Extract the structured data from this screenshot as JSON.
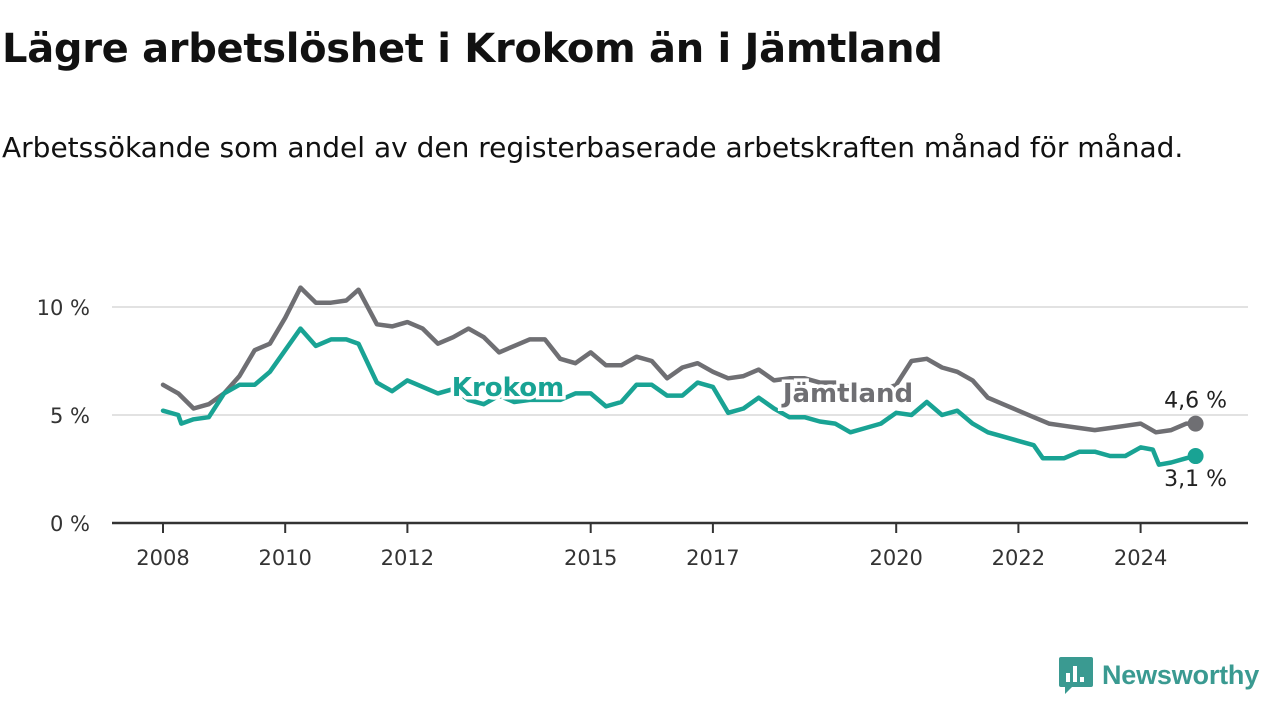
{
  "title": "Lägre arbetslöshet i Krokom än i Jämtland",
  "subtitle": "Arbetssökande som andel av den registerbaserade arbetskraften månad för månad.",
  "brand": {
    "name": "Newsworthy",
    "icon": "bar-chart-speech-icon",
    "color": "#3a9a91"
  },
  "chart_data": {
    "type": "line",
    "x_type": "year",
    "xlim": [
      2008,
      2025.75
    ],
    "ylim": [
      0,
      10.5
    ],
    "y_ticks": [
      0,
      5,
      10
    ],
    "y_tick_labels": [
      "0 %",
      "5 %",
      "10 %"
    ],
    "x_ticks": [
      2008,
      2010,
      2012,
      2015,
      2017,
      2020,
      2022,
      2024
    ],
    "x_tick_labels": [
      "2008",
      "2010",
      "2012",
      "2015",
      "2017",
      "2020",
      "2022",
      "2024"
    ],
    "grid": true,
    "legend": "inline",
    "series": [
      {
        "name": "Jämtland",
        "color": "#6f6f73",
        "end_label": "4,6 %",
        "points": [
          [
            2008,
            6.4
          ],
          [
            2008.25,
            6.0
          ],
          [
            2008.5,
            5.3
          ],
          [
            2008.75,
            5.5
          ],
          [
            2009,
            6.0
          ],
          [
            2009.25,
            6.8
          ],
          [
            2009.5,
            8.0
          ],
          [
            2009.75,
            8.3
          ],
          [
            2010,
            9.5
          ],
          [
            2010.25,
            10.9
          ],
          [
            2010.5,
            10.2
          ],
          [
            2010.75,
            10.2
          ],
          [
            2011,
            10.3
          ],
          [
            2011.2,
            10.8
          ],
          [
            2011.5,
            9.2
          ],
          [
            2011.75,
            9.1
          ],
          [
            2012,
            9.3
          ],
          [
            2012.25,
            9.0
          ],
          [
            2012.5,
            8.3
          ],
          [
            2012.75,
            8.6
          ],
          [
            2013,
            9.0
          ],
          [
            2013.25,
            8.6
          ],
          [
            2013.5,
            7.9
          ],
          [
            2013.75,
            8.2
          ],
          [
            2014,
            8.5
          ],
          [
            2014.25,
            8.5
          ],
          [
            2014.5,
            7.6
          ],
          [
            2014.75,
            7.4
          ],
          [
            2015,
            7.9
          ],
          [
            2015.25,
            7.3
          ],
          [
            2015.5,
            7.3
          ],
          [
            2015.75,
            7.7
          ],
          [
            2016,
            7.5
          ],
          [
            2016.25,
            6.7
          ],
          [
            2016.5,
            7.2
          ],
          [
            2016.75,
            7.4
          ],
          [
            2017,
            7.0
          ],
          [
            2017.25,
            6.7
          ],
          [
            2017.5,
            6.8
          ],
          [
            2017.75,
            7.1
          ],
          [
            2018,
            6.6
          ],
          [
            2018.25,
            6.7
          ],
          [
            2018.5,
            6.7
          ],
          [
            2018.75,
            6.5
          ],
          [
            2019,
            6.5
          ],
          [
            2019.25,
            6.3
          ],
          [
            2019.5,
            6.2
          ],
          [
            2019.75,
            6.1
          ],
          [
            2020,
            6.4
          ],
          [
            2020.25,
            7.5
          ],
          [
            2020.5,
            7.6
          ],
          [
            2020.75,
            7.2
          ],
          [
            2021,
            7.0
          ],
          [
            2021.25,
            6.6
          ],
          [
            2021.5,
            5.8
          ],
          [
            2021.75,
            5.5
          ],
          [
            2022,
            5.2
          ],
          [
            2022.25,
            4.9
          ],
          [
            2022.5,
            4.6
          ],
          [
            2022.75,
            4.5
          ],
          [
            2023,
            4.4
          ],
          [
            2023.25,
            4.3
          ],
          [
            2023.5,
            4.4
          ],
          [
            2023.75,
            4.5
          ],
          [
            2024,
            4.6
          ],
          [
            2024.25,
            4.2
          ],
          [
            2024.5,
            4.3
          ],
          [
            2024.75,
            4.6
          ],
          [
            2024.9,
            4.6
          ]
        ]
      },
      {
        "name": "Krokom",
        "color": "#19a394",
        "end_label": "3,1 %",
        "points": [
          [
            2008,
            5.2
          ],
          [
            2008.25,
            5.0
          ],
          [
            2008.3,
            4.6
          ],
          [
            2008.5,
            4.8
          ],
          [
            2008.75,
            4.9
          ],
          [
            2009,
            6.0
          ],
          [
            2009.25,
            6.4
          ],
          [
            2009.5,
            6.4
          ],
          [
            2009.75,
            7.0
          ],
          [
            2010,
            8.0
          ],
          [
            2010.25,
            9.0
          ],
          [
            2010.5,
            8.2
          ],
          [
            2010.75,
            8.5
          ],
          [
            2011,
            8.5
          ],
          [
            2011.2,
            8.3
          ],
          [
            2011.5,
            6.5
          ],
          [
            2011.75,
            6.1
          ],
          [
            2012,
            6.6
          ],
          [
            2012.25,
            6.3
          ],
          [
            2012.5,
            6.0
          ],
          [
            2012.75,
            6.2
          ],
          [
            2013,
            5.7
          ],
          [
            2013.25,
            5.5
          ],
          [
            2013.5,
            5.9
          ],
          [
            2013.75,
            5.6
          ],
          [
            2014,
            5.7
          ],
          [
            2014.25,
            5.7
          ],
          [
            2014.5,
            5.7
          ],
          [
            2014.75,
            6.0
          ],
          [
            2015,
            6.0
          ],
          [
            2015.25,
            5.4
          ],
          [
            2015.5,
            5.6
          ],
          [
            2015.75,
            6.4
          ],
          [
            2016,
            6.4
          ],
          [
            2016.25,
            5.9
          ],
          [
            2016.5,
            5.9
          ],
          [
            2016.75,
            6.5
          ],
          [
            2017,
            6.3
          ],
          [
            2017.25,
            5.1
          ],
          [
            2017.5,
            5.3
          ],
          [
            2017.75,
            5.8
          ],
          [
            2018,
            5.3
          ],
          [
            2018.25,
            4.9
          ],
          [
            2018.5,
            4.9
          ],
          [
            2018.75,
            4.7
          ],
          [
            2019,
            4.6
          ],
          [
            2019.25,
            4.2
          ],
          [
            2019.5,
            4.4
          ],
          [
            2019.75,
            4.6
          ],
          [
            2020,
            5.1
          ],
          [
            2020.25,
            5.0
          ],
          [
            2020.5,
            5.6
          ],
          [
            2020.75,
            5.0
          ],
          [
            2021,
            5.2
          ],
          [
            2021.25,
            4.6
          ],
          [
            2021.5,
            4.2
          ],
          [
            2021.75,
            4.0
          ],
          [
            2022,
            3.8
          ],
          [
            2022.25,
            3.6
          ],
          [
            2022.4,
            3.0
          ],
          [
            2022.75,
            3.0
          ],
          [
            2023,
            3.3
          ],
          [
            2023.25,
            3.3
          ],
          [
            2023.5,
            3.1
          ],
          [
            2023.75,
            3.1
          ],
          [
            2024,
            3.5
          ],
          [
            2024.2,
            3.4
          ],
          [
            2024.3,
            2.7
          ],
          [
            2024.5,
            2.8
          ],
          [
            2024.75,
            3.0
          ],
          [
            2024.9,
            3.1
          ]
        ]
      }
    ]
  }
}
